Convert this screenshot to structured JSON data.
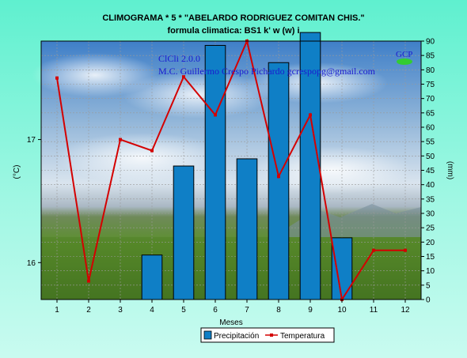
{
  "title_line1": "CLIMOGRAMA *       5    * \"ABELARDO RODRIGUEZ  COMITAN  CHIS.\"",
  "title_line2": "formula climatica: BS1 k' w (w) i",
  "watermark_line1": "ClCli 2.0.0",
  "watermark_line2": "M.C. Guillermo Crespo Pichardo  gcrespopg@gmail.com",
  "logo_text": "GCP",
  "colors": {
    "bar": "#0f7fc6",
    "line": "#d40000",
    "background": "#5ff0cf"
  },
  "chart_data": {
    "type": "bar+line",
    "xlabel": "Meses",
    "categories": [
      "1",
      "2",
      "3",
      "4",
      "5",
      "6",
      "7",
      "8",
      "9",
      "10",
      "11",
      "12"
    ],
    "series": [
      {
        "name": "Precipitación",
        "type": "bar",
        "axis": "right",
        "values": [
          0,
          0,
          0,
          15.5,
          46.5,
          88.5,
          49,
          82.5,
          93,
          21.5,
          0,
          0
        ]
      },
      {
        "name": "Temperatura",
        "type": "line",
        "axis": "left",
        "values": [
          17.5,
          15.85,
          17.0,
          16.91,
          17.51,
          17.2,
          17.8,
          16.7,
          17.2,
          15.7,
          16.1,
          16.1
        ]
      }
    ],
    "y_left": {
      "label": "(°C)",
      "range": [
        15.7,
        17.8
      ],
      "ticks": [
        16,
        17
      ]
    },
    "y_right": {
      "label": "(mm)",
      "range": [
        0,
        90
      ],
      "ticks": [
        0,
        5,
        10,
        15,
        20,
        25,
        30,
        35,
        40,
        45,
        50,
        55,
        60,
        65,
        70,
        75,
        80,
        85,
        90
      ]
    },
    "grid": true,
    "legend": "bottom"
  }
}
